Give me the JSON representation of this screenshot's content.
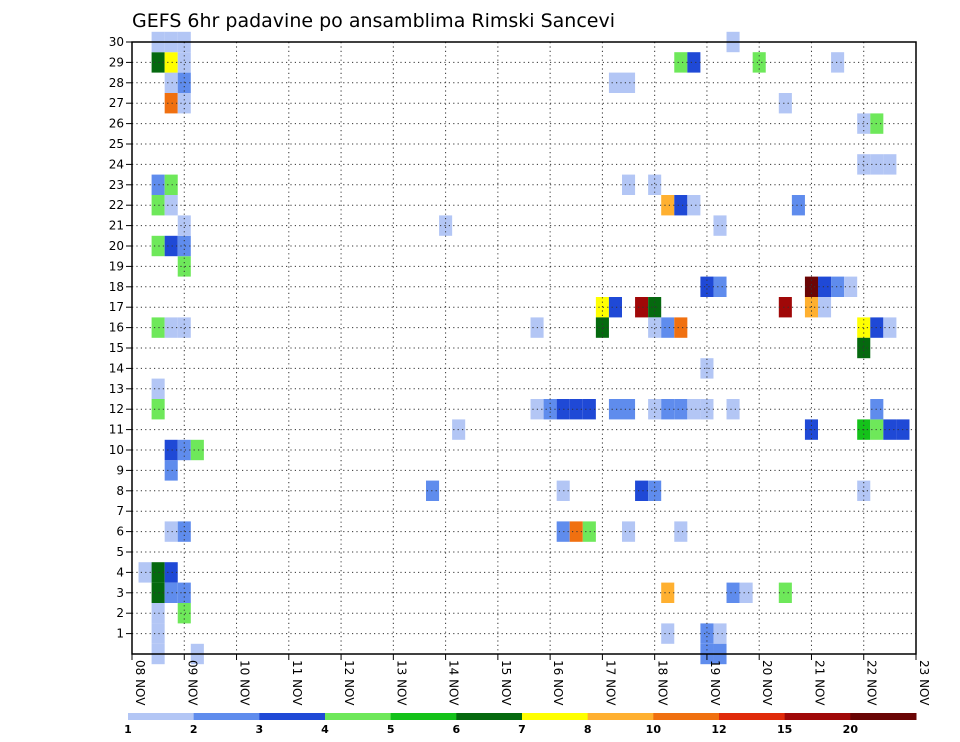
{
  "chart_data": {
    "type": "heatmap",
    "title": "GEFS 6hr padavine po ansamblima Rimski Sancevi",
    "xlabel": "",
    "ylabel": "",
    "x_ticks": [
      "08 NOV",
      "09 NOV",
      "10 NOV",
      "11 NOV",
      "12 NOV",
      "13 NOV",
      "14 NOV",
      "15 NOV",
      "16 NOV",
      "17 NOV",
      "18 NOV",
      "19 NOV",
      "20 NOV",
      "21 NOV",
      "22 NOV",
      "23 NOV"
    ],
    "x_range_days": [
      8,
      23
    ],
    "step_hours": 6,
    "y_ticks": [
      1,
      2,
      3,
      4,
      5,
      6,
      7,
      8,
      9,
      10,
      11,
      12,
      13,
      14,
      15,
      16,
      17,
      18,
      19,
      20,
      21,
      22,
      23,
      24,
      25,
      26,
      27,
      28,
      29,
      30
    ],
    "y_range": [
      0,
      30
    ],
    "grid": true,
    "colorbar": {
      "placement": "bottom",
      "labels": [
        "1",
        "2",
        "3",
        "4",
        "5",
        "6",
        "7",
        "8",
        "10",
        "12",
        "15",
        "20"
      ],
      "colors": [
        "#b3c6f5",
        "#5f8ced",
        "#1f49d6",
        "#6ee85a",
        "#14c21a",
        "#05690f",
        "#ffff00",
        "#ffb030",
        "#f07010",
        "#e02a0a",
        "#a00808",
        "#6a0505"
      ]
    },
    "cells": [
      {
        "t": 8.25,
        "m": 4,
        "c": 1
      },
      {
        "t": 8.5,
        "m": 4,
        "c": 6
      },
      {
        "t": 8.75,
        "m": 4,
        "c": 3
      },
      {
        "t": 8.5,
        "m": 3,
        "c": 6
      },
      {
        "t": 8.75,
        "m": 3,
        "c": 2
      },
      {
        "t": 9.0,
        "m": 3,
        "c": 2
      },
      {
        "t": 8.5,
        "m": 2,
        "c": 1
      },
      {
        "t": 9.0,
        "m": 2,
        "c": 4
      },
      {
        "t": 8.5,
        "m": 1,
        "c": 1
      },
      {
        "t": 8.5,
        "m": 0,
        "c": 1
      },
      {
        "t": 9.25,
        "m": 0,
        "c": 1
      },
      {
        "t": 8.75,
        "m": 6,
        "c": 1
      },
      {
        "t": 9.0,
        "m": 6,
        "c": 2
      },
      {
        "t": 8.75,
        "m": 9,
        "c": 2
      },
      {
        "t": 8.75,
        "m": 10,
        "c": 3
      },
      {
        "t": 9.0,
        "m": 10,
        "c": 2
      },
      {
        "t": 9.25,
        "m": 10,
        "c": 4
      },
      {
        "t": 8.5,
        "m": 12,
        "c": 4
      },
      {
        "t": 8.5,
        "m": 13,
        "c": 1
      },
      {
        "t": 8.5,
        "m": 16,
        "c": 4
      },
      {
        "t": 8.75,
        "m": 16,
        "c": 1
      },
      {
        "t": 9.0,
        "m": 16,
        "c": 1
      },
      {
        "t": 9.0,
        "m": 19,
        "c": 4
      },
      {
        "t": 8.5,
        "m": 20,
        "c": 4
      },
      {
        "t": 8.75,
        "m": 20,
        "c": 3
      },
      {
        "t": 9.0,
        "m": 20,
        "c": 2
      },
      {
        "t": 9.0,
        "m": 21,
        "c": 1
      },
      {
        "t": 8.5,
        "m": 22,
        "c": 4
      },
      {
        "t": 8.75,
        "m": 22,
        "c": 1
      },
      {
        "t": 8.5,
        "m": 23,
        "c": 2
      },
      {
        "t": 8.75,
        "m": 23,
        "c": 4
      },
      {
        "t": 8.75,
        "m": 27,
        "c": 9
      },
      {
        "t": 9.0,
        "m": 27,
        "c": 1
      },
      {
        "t": 8.75,
        "m": 28,
        "c": 1
      },
      {
        "t": 9.0,
        "m": 28,
        "c": 2
      },
      {
        "t": 8.5,
        "m": 29,
        "c": 6
      },
      {
        "t": 8.75,
        "m": 29,
        "c": 7
      },
      {
        "t": 9.0,
        "m": 29,
        "c": 1
      },
      {
        "t": 8.5,
        "m": 30,
        "c": 1
      },
      {
        "t": 8.75,
        "m": 30,
        "c": 1
      },
      {
        "t": 9.0,
        "m": 30,
        "c": 1
      },
      {
        "t": 13.75,
        "m": 8,
        "c": 2
      },
      {
        "t": 14.0,
        "m": 21,
        "c": 1
      },
      {
        "t": 14.25,
        "m": 11,
        "c": 1
      },
      {
        "t": 15.75,
        "m": 12,
        "c": 1
      },
      {
        "t": 15.75,
        "m": 16,
        "c": 1
      },
      {
        "t": 16.0,
        "m": 12,
        "c": 2
      },
      {
        "t": 16.25,
        "m": 12,
        "c": 3
      },
      {
        "t": 16.5,
        "m": 12,
        "c": 3
      },
      {
        "t": 16.75,
        "m": 12,
        "c": 3
      },
      {
        "t": 16.25,
        "m": 8,
        "c": 1
      },
      {
        "t": 16.25,
        "m": 6,
        "c": 2
      },
      {
        "t": 16.5,
        "m": 6,
        "c": 9
      },
      {
        "t": 16.75,
        "m": 6,
        "c": 4
      },
      {
        "t": 17.0,
        "m": 17,
        "c": 7
      },
      {
        "t": 17.25,
        "m": 17,
        "c": 3
      },
      {
        "t": 17.0,
        "m": 16,
        "c": 6
      },
      {
        "t": 17.25,
        "m": 12,
        "c": 2
      },
      {
        "t": 17.5,
        "m": 12,
        "c": 2
      },
      {
        "t": 17.5,
        "m": 6,
        "c": 1
      },
      {
        "t": 17.5,
        "m": 23,
        "c": 1
      },
      {
        "t": 17.25,
        "m": 28,
        "c": 1
      },
      {
        "t": 17.5,
        "m": 28,
        "c": 1
      },
      {
        "t": 17.75,
        "m": 17,
        "c": 11
      },
      {
        "t": 18.0,
        "m": 17,
        "c": 6
      },
      {
        "t": 17.75,
        "m": 8,
        "c": 3
      },
      {
        "t": 18.0,
        "m": 8,
        "c": 2
      },
      {
        "t": 18.0,
        "m": 16,
        "c": 1
      },
      {
        "t": 18.25,
        "m": 16,
        "c": 2
      },
      {
        "t": 18.5,
        "m": 16,
        "c": 9
      },
      {
        "t": 18.0,
        "m": 12,
        "c": 1
      },
      {
        "t": 18.25,
        "m": 12,
        "c": 2
      },
      {
        "t": 18.5,
        "m": 12,
        "c": 2
      },
      {
        "t": 18.75,
        "m": 12,
        "c": 1
      },
      {
        "t": 19.0,
        "m": 12,
        "c": 1
      },
      {
        "t": 19.5,
        "m": 12,
        "c": 1
      },
      {
        "t": 18.0,
        "m": 23,
        "c": 1
      },
      {
        "t": 18.25,
        "m": 22,
        "c": 8
      },
      {
        "t": 18.5,
        "m": 22,
        "c": 3
      },
      {
        "t": 18.75,
        "m": 22,
        "c": 1
      },
      {
        "t": 18.25,
        "m": 3,
        "c": 8
      },
      {
        "t": 18.25,
        "m": 1,
        "c": 1
      },
      {
        "t": 18.5,
        "m": 6,
        "c": 1
      },
      {
        "t": 18.5,
        "m": 29,
        "c": 4
      },
      {
        "t": 18.75,
        "m": 29,
        "c": 3
      },
      {
        "t": 19.0,
        "m": 18,
        "c": 3
      },
      {
        "t": 19.25,
        "m": 18,
        "c": 2
      },
      {
        "t": 19.0,
        "m": 14,
        "c": 1
      },
      {
        "t": 19.25,
        "m": 21,
        "c": 1
      },
      {
        "t": 19.0,
        "m": 1,
        "c": 2
      },
      {
        "t": 19.0,
        "m": 0,
        "c": 2
      },
      {
        "t": 19.25,
        "m": 1,
        "c": 1
      },
      {
        "t": 19.25,
        "m": 0,
        "c": 2
      },
      {
        "t": 19.5,
        "m": 3,
        "c": 2
      },
      {
        "t": 19.75,
        "m": 3,
        "c": 1
      },
      {
        "t": 19.5,
        "m": 30,
        "c": 1
      },
      {
        "t": 20.0,
        "m": 29,
        "c": 4
      },
      {
        "t": 20.5,
        "m": 3,
        "c": 4
      },
      {
        "t": 20.5,
        "m": 17,
        "c": 11
      },
      {
        "t": 20.5,
        "m": 27,
        "c": 1
      },
      {
        "t": 20.75,
        "m": 22,
        "c": 2
      },
      {
        "t": 21.0,
        "m": 18,
        "c": 12
      },
      {
        "t": 21.25,
        "m": 18,
        "c": 3
      },
      {
        "t": 21.5,
        "m": 18,
        "c": 2
      },
      {
        "t": 21.75,
        "m": 18,
        "c": 1
      },
      {
        "t": 21.0,
        "m": 17,
        "c": 8
      },
      {
        "t": 21.25,
        "m": 17,
        "c": 1
      },
      {
        "t": 21.0,
        "m": 11,
        "c": 3
      },
      {
        "t": 21.5,
        "m": 29,
        "c": 1
      },
      {
        "t": 22.0,
        "m": 16,
        "c": 7
      },
      {
        "t": 22.25,
        "m": 16,
        "c": 3
      },
      {
        "t": 22.5,
        "m": 16,
        "c": 1
      },
      {
        "t": 22.0,
        "m": 15,
        "c": 6
      },
      {
        "t": 22.0,
        "m": 11,
        "c": 5
      },
      {
        "t": 22.25,
        "m": 11,
        "c": 4
      },
      {
        "t": 22.5,
        "m": 11,
        "c": 3
      },
      {
        "t": 22.75,
        "m": 11,
        "c": 3
      },
      {
        "t": 22.25,
        "m": 12,
        "c": 2
      },
      {
        "t": 22.0,
        "m": 8,
        "c": 1
      },
      {
        "t": 22.0,
        "m": 26,
        "c": 1
      },
      {
        "t": 22.25,
        "m": 26,
        "c": 4
      },
      {
        "t": 22.0,
        "m": 24,
        "c": 1
      },
      {
        "t": 22.25,
        "m": 24,
        "c": 1
      },
      {
        "t": 22.5,
        "m": 24,
        "c": 1
      }
    ]
  }
}
